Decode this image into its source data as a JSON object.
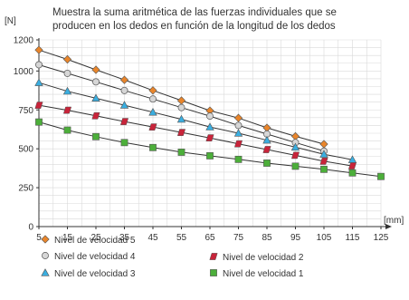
{
  "chart_data": {
    "type": "line",
    "title": "Muestra la suma aritmética de las fuerzas individuales que se producen en los dedos en función de la longitud de los dedos",
    "title_lines": [
      "Muestra la suma aritmética de las fuerzas individuales que se",
      "producen en los dedos en función de la longitud de los dedos"
    ],
    "ylabel": "[N]",
    "xlabel": "[mm]",
    "xlim": [
      5,
      125
    ],
    "ylim": [
      0,
      1200
    ],
    "x_ticks": [
      5,
      15,
      25,
      35,
      45,
      55,
      65,
      75,
      85,
      95,
      105,
      115,
      125
    ],
    "y_ticks": [
      0,
      250,
      500,
      750,
      1000,
      1200
    ],
    "grid": true,
    "legend_position": "bottom",
    "series": [
      {
        "name": "Nivel de velocidad 5",
        "marker": "diamond",
        "color": "#e8852b",
        "x": [
          5,
          15,
          25,
          35,
          45,
          55,
          65,
          75,
          85,
          95,
          105
        ],
        "y": [
          1135,
          1075,
          1008,
          943,
          875,
          810,
          745,
          698,
          635,
          580,
          530
        ]
      },
      {
        "name": "Nivel de velocidad 4",
        "marker": "circle",
        "color": "#d6d6d6",
        "x": [
          5,
          15,
          25,
          35,
          45,
          55,
          65,
          75,
          85,
          95,
          105
        ],
        "y": [
          1040,
          985,
          930,
          875,
          820,
          765,
          710,
          650,
          595,
          540,
          485
        ]
      },
      {
        "name": "Nivel de velocidad 3",
        "marker": "triangle",
        "color": "#3aaee0",
        "x": [
          5,
          15,
          25,
          35,
          45,
          55,
          65,
          75,
          85,
          95,
          105,
          115
        ],
        "y": [
          925,
          870,
          825,
          780,
          735,
          690,
          640,
          600,
          555,
          510,
          465,
          430
        ]
      },
      {
        "name": "Nivel de velocidad 2",
        "marker": "parallelogram",
        "color": "#c8243a",
        "x": [
          5,
          15,
          25,
          35,
          45,
          55,
          65,
          75,
          85,
          95,
          105,
          115
        ],
        "y": [
          780,
          748,
          712,
          675,
          640,
          605,
          570,
          532,
          495,
          458,
          420,
          390
        ]
      },
      {
        "name": "Nivel de velocidad 1",
        "marker": "square",
        "color": "#4caf3a",
        "x": [
          5,
          15,
          25,
          35,
          45,
          55,
          65,
          75,
          85,
          95,
          105,
          115,
          125
        ],
        "y": [
          672,
          620,
          578,
          540,
          508,
          478,
          455,
          432,
          408,
          388,
          368,
          345,
          322
        ]
      }
    ]
  }
}
